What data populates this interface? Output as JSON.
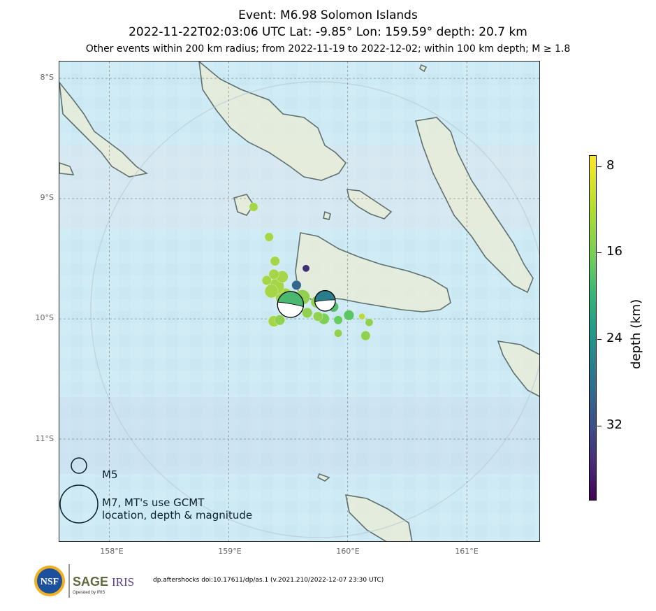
{
  "title": {
    "line1": "Event: M6.98 Solomon Islands",
    "line2": "2022-11-22T02:03:06 UTC Lat: -9.85° Lon: 159.59° depth: 20.7 km",
    "line3": "Other events within 200 km radius; from 2022-11-19 to 2022-12-02; within 100 km depth; M ≥ 1.8"
  },
  "axes": {
    "lat_labels": [
      "8°S",
      "9°S",
      "10°S",
      "11°S"
    ],
    "lon_labels": [
      "158°E",
      "159°E",
      "160°E",
      "161°E"
    ]
  },
  "colorbar": {
    "label": "depth (km)",
    "ticks": [
      "8",
      "16",
      "24",
      "32"
    ],
    "colormap": "viridis"
  },
  "legend": {
    "small_label": "M5",
    "large_label_line1": "M7, MT's use GCMT",
    "large_label_line2": "location, depth & magnitude"
  },
  "footer": {
    "credit": "dp.aftershocks doi:10.17611/dp/as.1 (v.2021.210/2022-12-07 23:30 UTC)",
    "logo_nsf": "NSF",
    "logo_sage": "SAGE",
    "logo_iris": "IRIS",
    "logo_sub": "Operated by IRIS"
  },
  "mainshock": {
    "lat": -9.85,
    "lon": 159.59,
    "depth_km": 20.7,
    "magnitude": 6.98
  },
  "events": [
    {
      "lon": 159.21,
      "lat": -9.07,
      "depth": 11,
      "mag": 4.4
    },
    {
      "lon": 159.34,
      "lat": -9.32,
      "depth": 11,
      "mag": 4.4
    },
    {
      "lon": 159.39,
      "lat": -9.52,
      "depth": 11,
      "mag": 4.5
    },
    {
      "lon": 159.65,
      "lat": -9.58,
      "depth": 34,
      "mag": 4.2
    },
    {
      "lon": 159.38,
      "lat": -9.63,
      "depth": 11,
      "mag": 4.6
    },
    {
      "lon": 159.32,
      "lat": -9.68,
      "depth": 11,
      "mag": 4.5
    },
    {
      "lon": 159.45,
      "lat": -9.65,
      "depth": 11,
      "mag": 4.8
    },
    {
      "lon": 159.4,
      "lat": -9.73,
      "depth": 11,
      "mag": 5.3
    },
    {
      "lon": 159.36,
      "lat": -9.77,
      "depth": 11,
      "mag": 5.0
    },
    {
      "lon": 159.57,
      "lat": -9.72,
      "depth": 28,
      "mag": 4.5
    },
    {
      "lon": 159.47,
      "lat": -9.82,
      "depth": 11,
      "mag": 5.6
    },
    {
      "lon": 159.62,
      "lat": -9.82,
      "depth": 12,
      "mag": 5.2
    },
    {
      "lon": 159.55,
      "lat": -9.9,
      "depth": 12,
      "mag": 5.0
    },
    {
      "lon": 159.74,
      "lat": -9.86,
      "depth": 12,
      "mag": 4.8
    },
    {
      "lon": 159.88,
      "lat": -9.9,
      "depth": 16,
      "mag": 4.6
    },
    {
      "lon": 159.66,
      "lat": -9.95,
      "depth": 12,
      "mag": 4.6
    },
    {
      "lon": 159.75,
      "lat": -9.98,
      "depth": 12,
      "mag": 4.5
    },
    {
      "lon": 159.8,
      "lat": -10.0,
      "depth": 13,
      "mag": 4.7
    },
    {
      "lon": 159.43,
      "lat": -10.01,
      "depth": 12,
      "mag": 4.6
    },
    {
      "lon": 159.38,
      "lat": -10.02,
      "depth": 11,
      "mag": 4.7
    },
    {
      "lon": 159.92,
      "lat": -10.01,
      "depth": 14,
      "mag": 4.4
    },
    {
      "lon": 160.01,
      "lat": -9.97,
      "depth": 15,
      "mag": 4.6
    },
    {
      "lon": 160.12,
      "lat": -9.98,
      "depth": 10,
      "mag": 4.1
    },
    {
      "lon": 160.18,
      "lat": -10.03,
      "depth": 12,
      "mag": 4.3
    },
    {
      "lon": 159.92,
      "lat": -10.12,
      "depth": 12,
      "mag": 4.3
    },
    {
      "lon": 160.15,
      "lat": -10.14,
      "depth": 12,
      "mag": 4.5
    }
  ],
  "focal_mechanisms": [
    {
      "lon": 159.52,
      "lat": -9.88,
      "depth": 17,
      "mag": 6.98,
      "rotation": 10
    },
    {
      "lon": 159.81,
      "lat": -9.85,
      "depth": 25,
      "mag": 6.2,
      "rotation": -5
    }
  ],
  "extent": {
    "lon_min": 157.58,
    "lon_max": 161.62,
    "lat_min": -11.86,
    "lat_max": -7.86
  },
  "search_radius_km": 200
}
